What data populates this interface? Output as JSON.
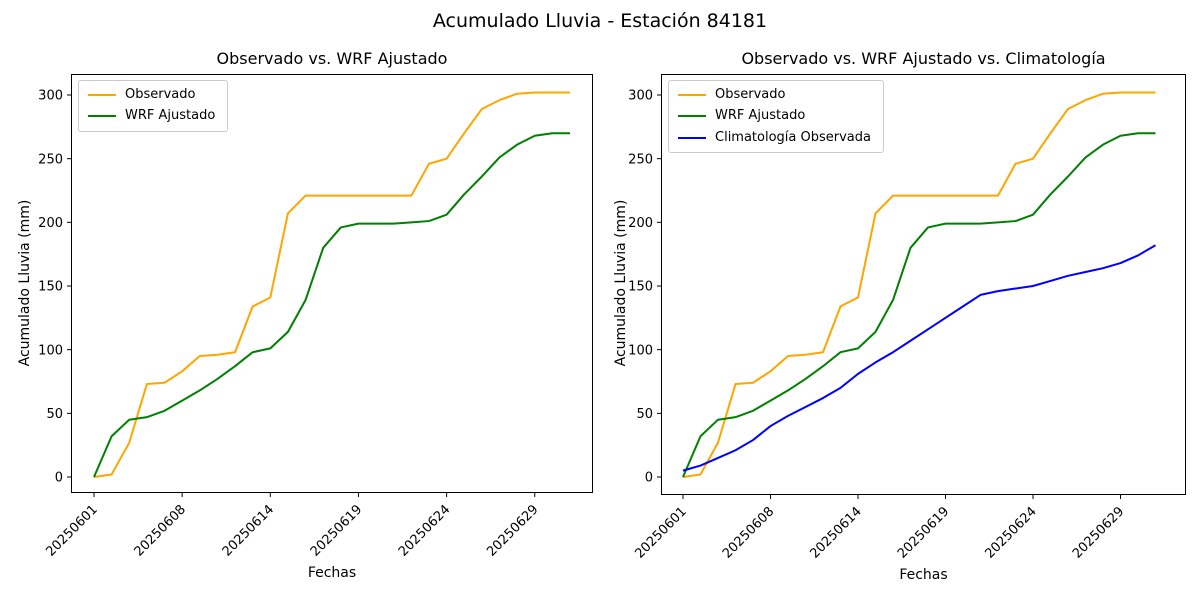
{
  "figure": {
    "suptitle": "Acumulado Lluvia - Estación 84181",
    "background": "#ffffff",
    "spine_color": "#000000",
    "tick_color": "#000000"
  },
  "axes": {
    "ylabel": "Acumulado Lluvia (mm)",
    "xlabel": "Fechas",
    "y_ticks": [
      0,
      50,
      100,
      150,
      200,
      250,
      300
    ],
    "x_tick_labels": [
      "20250601",
      "20250608",
      "20250614",
      "20250619",
      "20250624",
      "20250629"
    ],
    "x_tick_positions": [
      0,
      5,
      10,
      15,
      20,
      25
    ]
  },
  "chart_data": [
    {
      "type": "line",
      "title": "Observado vs. WRF Ajustado",
      "xlabel": "Fechas",
      "ylabel": "Acumulado Lluvia (mm)",
      "n_points": 28,
      "x_tick_positions": [
        0,
        5,
        10,
        15,
        20,
        25
      ],
      "x_tick_labels": [
        "20250601",
        "20250608",
        "20250614",
        "20250619",
        "20250624",
        "20250629"
      ],
      "ylim": [
        0,
        302
      ],
      "y_ticks": [
        0,
        50,
        100,
        150,
        200,
        250,
        300
      ],
      "grid": false,
      "legend_position": "upper left",
      "series": [
        {
          "name": "Observado",
          "color": "#FFA500",
          "values": [
            0,
            2,
            27,
            73,
            74,
            83,
            95,
            96,
            98,
            134,
            141,
            207,
            221,
            221,
            221,
            221,
            221,
            221,
            221,
            246,
            250,
            270,
            289,
            296,
            301,
            302,
            302,
            302
          ]
        },
        {
          "name": "WRF Ajustado",
          "color": "#008000",
          "values": [
            0,
            32,
            45,
            47,
            52,
            60,
            68,
            77,
            87,
            98,
            101,
            114,
            139,
            180,
            196,
            199,
            199,
            199,
            200,
            201,
            206,
            222,
            236,
            251,
            261,
            268,
            270,
            270
          ]
        }
      ]
    },
    {
      "type": "line",
      "title": "Observado vs. WRF Ajustado vs. Climatología",
      "xlabel": "Fechas",
      "ylabel": "Acumulado Lluvia (mm)",
      "n_points": 28,
      "x_tick_positions": [
        0,
        5,
        10,
        15,
        20,
        25
      ],
      "x_tick_labels": [
        "20250601",
        "20250608",
        "20250614",
        "20250619",
        "20250624",
        "20250629"
      ],
      "ylim": [
        0,
        302
      ],
      "y_ticks": [
        0,
        50,
        100,
        150,
        200,
        250,
        300
      ],
      "grid": false,
      "legend_position": "upper left",
      "series": [
        {
          "name": "Observado",
          "color": "#FFA500",
          "values": [
            0,
            2,
            27,
            73,
            74,
            83,
            95,
            96,
            98,
            134,
            141,
            207,
            221,
            221,
            221,
            221,
            221,
            221,
            221,
            246,
            250,
            270,
            289,
            296,
            301,
            302,
            302,
            302
          ]
        },
        {
          "name": "WRF Ajustado",
          "color": "#008000",
          "values": [
            0,
            32,
            45,
            47,
            52,
            60,
            68,
            77,
            87,
            98,
            101,
            114,
            139,
            180,
            196,
            199,
            199,
            199,
            200,
            201,
            206,
            222,
            236,
            251,
            261,
            268,
            270,
            270
          ]
        },
        {
          "name": "Climatología Observada",
          "color": "#0000FF",
          "values": [
            5,
            9,
            15,
            21,
            29,
            40,
            48,
            55,
            62,
            70,
            81,
            90,
            98,
            107,
            116,
            125,
            134,
            143,
            146,
            148,
            150,
            154,
            158,
            161,
            164,
            168,
            174,
            182
          ]
        }
      ]
    }
  ]
}
